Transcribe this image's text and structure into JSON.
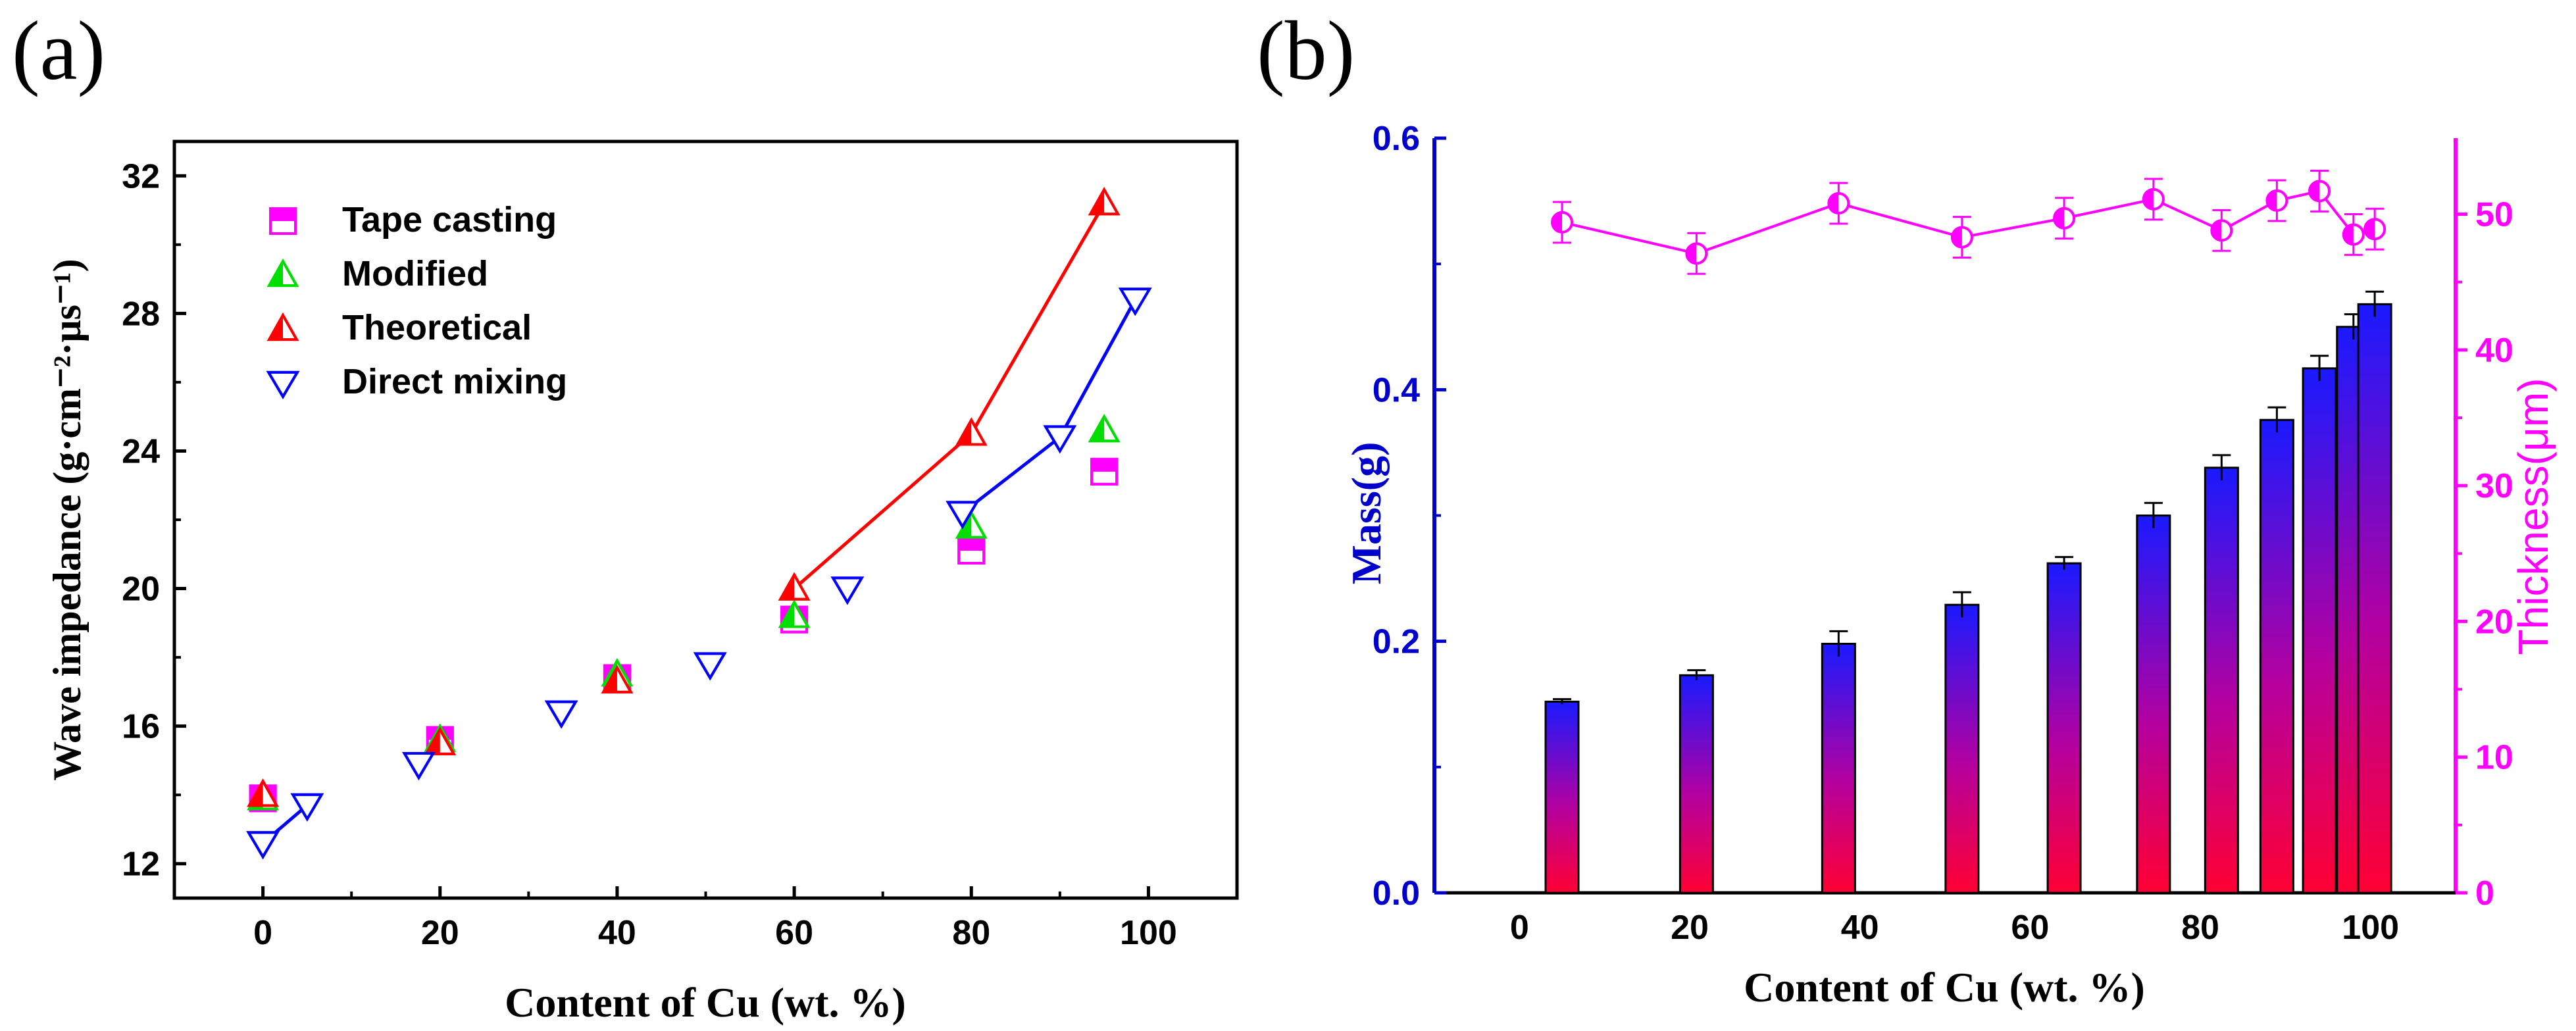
{
  "chart_data": [
    {
      "panel": "(a)",
      "type": "scatter",
      "xlabel": "Content of Cu (wt. %)",
      "ylabel": "Wave impedance (g·cm⁻²·μs⁻¹)",
      "xlim": [
        -10,
        110
      ],
      "ylim": [
        11,
        33
      ],
      "xticks": [
        0,
        20,
        40,
        60,
        80,
        100
      ],
      "yticks": [
        12,
        16,
        20,
        24,
        28,
        32
      ],
      "series": [
        {
          "name": "Tape casting",
          "marker": "square",
          "color": "#ff00ff",
          "connect": false,
          "x": [
            0,
            20,
            40,
            60,
            80,
            95
          ],
          "y": [
            13.9,
            15.6,
            17.4,
            19.1,
            21.1,
            23.4
          ]
        },
        {
          "name": "Modified",
          "marker": "triangle-up",
          "color": "#00dd00",
          "connect": false,
          "x": [
            0,
            20,
            40,
            60,
            80,
            95
          ],
          "y": [
            13.9,
            15.6,
            17.5,
            19.2,
            21.8,
            24.6
          ]
        },
        {
          "name": "Theoretical",
          "marker": "triangle-up",
          "color": "#ff0000",
          "connect_segments": [
            [
              3,
              4,
              5
            ]
          ],
          "x": [
            0,
            20,
            40,
            60,
            80,
            95
          ],
          "y": [
            14.0,
            15.5,
            17.3,
            20.0,
            24.5,
            31.2
          ]
        },
        {
          "name": "Direct mixing",
          "marker": "triangle-down",
          "color": "#0000ff",
          "connect_segments": [
            [
              0,
              1
            ],
            [
              6,
              7
            ],
            [
              7,
              8
            ]
          ],
          "x": [
            0,
            5,
            17.6,
            33.7,
            50.5,
            66,
            79,
            90,
            98.5
          ],
          "y": [
            12.6,
            13.7,
            14.9,
            16.4,
            17.8,
            20.0,
            22.2,
            24.4,
            28.4
          ]
        }
      ],
      "legend_position": "top-left"
    },
    {
      "panel": "(b)",
      "type": "bar",
      "xlabel": "Content of Cu (wt. %)",
      "ylabel": "Mass(g)",
      "y2label": "Thickness(μm)",
      "xlim": [
        -10,
        110
      ],
      "ylim": [
        0,
        0.6
      ],
      "y2lim": [
        0,
        55.6
      ],
      "xticks": [
        0,
        20,
        40,
        60,
        80,
        100
      ],
      "yticks": [
        0.0,
        0.2,
        0.4,
        0.6
      ],
      "y2ticks": [
        0,
        10,
        20,
        30,
        40,
        50
      ],
      "x": [
        5,
        20.8,
        37.5,
        52,
        64,
        74.5,
        82.5,
        89,
        94,
        98,
        100.5
      ],
      "mass": [
        0.152,
        0.173,
        0.198,
        0.229,
        0.262,
        0.3,
        0.338,
        0.376,
        0.417,
        0.45,
        0.468
      ],
      "mass_err": [
        0.002,
        0.004,
        0.01,
        0.01,
        0.005,
        0.01,
        0.01,
        0.01,
        0.01,
        0.01,
        0.01
      ],
      "thickness_x": [
        5,
        20.8,
        37.5,
        52,
        64,
        74.5,
        82.5,
        89,
        94,
        98,
        100.5
      ],
      "thickness": [
        49.4,
        47.1,
        50.8,
        48.3,
        49.7,
        51.1,
        48.8,
        51.0,
        51.7,
        48.5,
        48.9
      ],
      "thickness_err": [
        1.5,
        1.5,
        1.5,
        1.5,
        1.5,
        1.5,
        1.5,
        1.5,
        1.5,
        1.5,
        1.5
      ],
      "colors": {
        "mass_axis": "#0000cc",
        "thickness_axis": "#ff00ff",
        "bar_top": "#1a1aff",
        "bar_bottom": "#ff0033"
      }
    }
  ],
  "panels": {
    "a_label": "(a)",
    "b_label": "(b)"
  }
}
